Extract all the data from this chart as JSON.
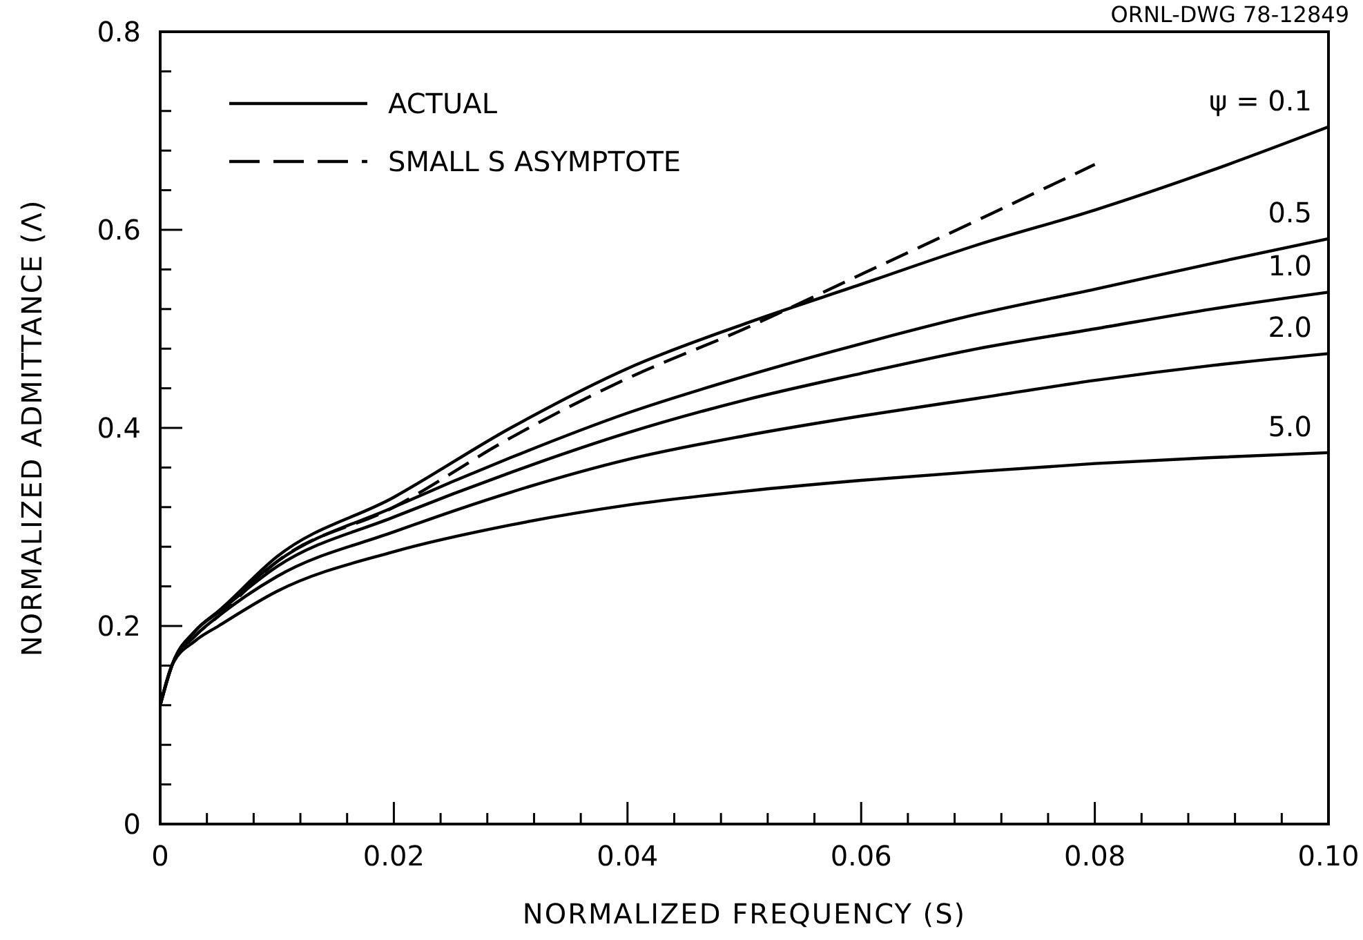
{
  "chart_data": {
    "type": "line",
    "xlabel": "NORMALIZED FREQUENCY (S)",
    "ylabel": "NORMALIZED ADMITTANCE (Λ)",
    "annotations": [
      "ORNL-DWG 78-12849",
      "ψ = 0.1",
      "0.5",
      "1.0",
      "2.0",
      "5.0"
    ],
    "x": [
      0,
      0.001,
      0.003,
      0.005,
      0.01,
      0.02,
      0.03,
      0.04,
      0.05,
      0.06,
      0.07,
      0.08,
      0.09,
      0.1
    ],
    "series": [
      {
        "name": "ACTUAL",
        "color": "#000000",
        "line_style": "solid",
        "values": [
          0.12,
          0.16,
          0.195,
          0.215,
          0.27,
          0.33,
          0.4,
          0.46,
          0.505,
          0.545,
          0.585,
          0.62,
          0.66,
          0.704
        ]
      },
      {
        "color": "#000000",
        "line_style": "solid",
        "values": [
          0.12,
          0.16,
          0.195,
          0.215,
          0.265,
          0.32,
          0.37,
          0.415,
          0.452,
          0.485,
          0.515,
          0.54,
          0.566,
          0.591
        ]
      },
      {
        "color": "#000000",
        "line_style": "solid",
        "values": [
          0.12,
          0.16,
          0.195,
          0.214,
          0.26,
          0.31,
          0.355,
          0.395,
          0.428,
          0.455,
          0.48,
          0.5,
          0.52,
          0.537
        ]
      },
      {
        "color": "#000000",
        "line_style": "solid",
        "values": [
          0.12,
          0.16,
          0.19,
          0.21,
          0.25,
          0.295,
          0.335,
          0.368,
          0.392,
          0.412,
          0.43,
          0.448,
          0.463,
          0.475
        ]
      },
      {
        "color": "#000000",
        "line_style": "solid",
        "values": [
          0.12,
          0.16,
          0.185,
          0.2,
          0.235,
          0.275,
          0.302,
          0.322,
          0.336,
          0.347,
          0.356,
          0.364,
          0.37,
          0.375
        ]
      },
      {
        "name": "SMALL S ASYMPTOTE",
        "color": "#000000",
        "line_style": "dashed",
        "x": [
          0,
          0.001,
          0.003,
          0.005,
          0.01,
          0.02,
          0.03,
          0.04,
          0.05,
          0.06,
          0.07,
          0.08
        ],
        "values": [
          0.12,
          0.16,
          0.19,
          0.21,
          0.265,
          0.32,
          0.39,
          0.45,
          0.5,
          0.555,
          0.61,
          0.666
        ]
      }
    ],
    "xlim": [
      0,
      0.1
    ],
    "ylim": [
      0,
      0.8
    ],
    "xticks": [
      0,
      {
        "value": 0.004,
        "label": null
      },
      {
        "value": 0.008,
        "label": null
      },
      {
        "value": 0.012,
        "label": null
      },
      {
        "value": 0.016,
        "label": null
      },
      {
        "value": 0.02,
        "label": "0.02"
      },
      {
        "value": 0.024,
        "label": null
      },
      {
        "value": 0.028,
        "label": null
      },
      {
        "value": 0.032,
        "label": null
      },
      {
        "value": 0.036,
        "label": null
      },
      {
        "value": 0.04,
        "label": "0.04"
      },
      {
        "value": 0.044,
        "label": null
      },
      {
        "value": 0.048,
        "label": null
      },
      {
        "value": 0.052,
        "label": null
      },
      {
        "value": 0.056,
        "label": null
      },
      {
        "value": 0.06,
        "label": "0.06"
      },
      {
        "value": 0.064,
        "label": null
      },
      {
        "value": 0.068,
        "label": null
      },
      {
        "value": 0.072,
        "label": null
      },
      {
        "value": 0.076,
        "label": null
      },
      {
        "value": 0.08,
        "label": "0.08"
      },
      {
        "value": 0.084,
        "label": null
      },
      {
        "value": 0.088,
        "label": null
      },
      {
        "value": 0.092,
        "label": null
      },
      {
        "value": 0.096,
        "label": null
      },
      {
        "value": 0.1,
        "label": "0.10"
      }
    ],
    "yticks": [
      0,
      {
        "value": 0.04,
        "label": null
      },
      {
        "value": 0.08,
        "label": null
      },
      {
        "value": 0.12,
        "label": null
      },
      {
        "value": 0.16,
        "label": null
      },
      {
        "value": 0.2,
        "label": "0.2"
      },
      {
        "value": 0.24,
        "label": null
      },
      {
        "value": 0.28,
        "label": null
      },
      {
        "value": 0.32,
        "label": null
      },
      {
        "value": 0.36,
        "label": null
      },
      {
        "value": 0.4,
        "label": "0.4"
      },
      {
        "value": 0.44,
        "label": null
      },
      {
        "value": 0.48,
        "label": null
      },
      {
        "value": 0.52,
        "label": null
      },
      {
        "value": 0.56,
        "label": null
      },
      {
        "value": 0.6,
        "label": "0.6"
      },
      {
        "value": 0.64,
        "label": null
      },
      {
        "value": 0.68,
        "label": null
      },
      {
        "value": 0.72,
        "label": null
      },
      {
        "value": 0.76,
        "label": null
      },
      {
        "value": 0.8,
        "label": "0.8"
      }
    ],
    "grid": false,
    "legend": "top left",
    "marker": "none"
  }
}
